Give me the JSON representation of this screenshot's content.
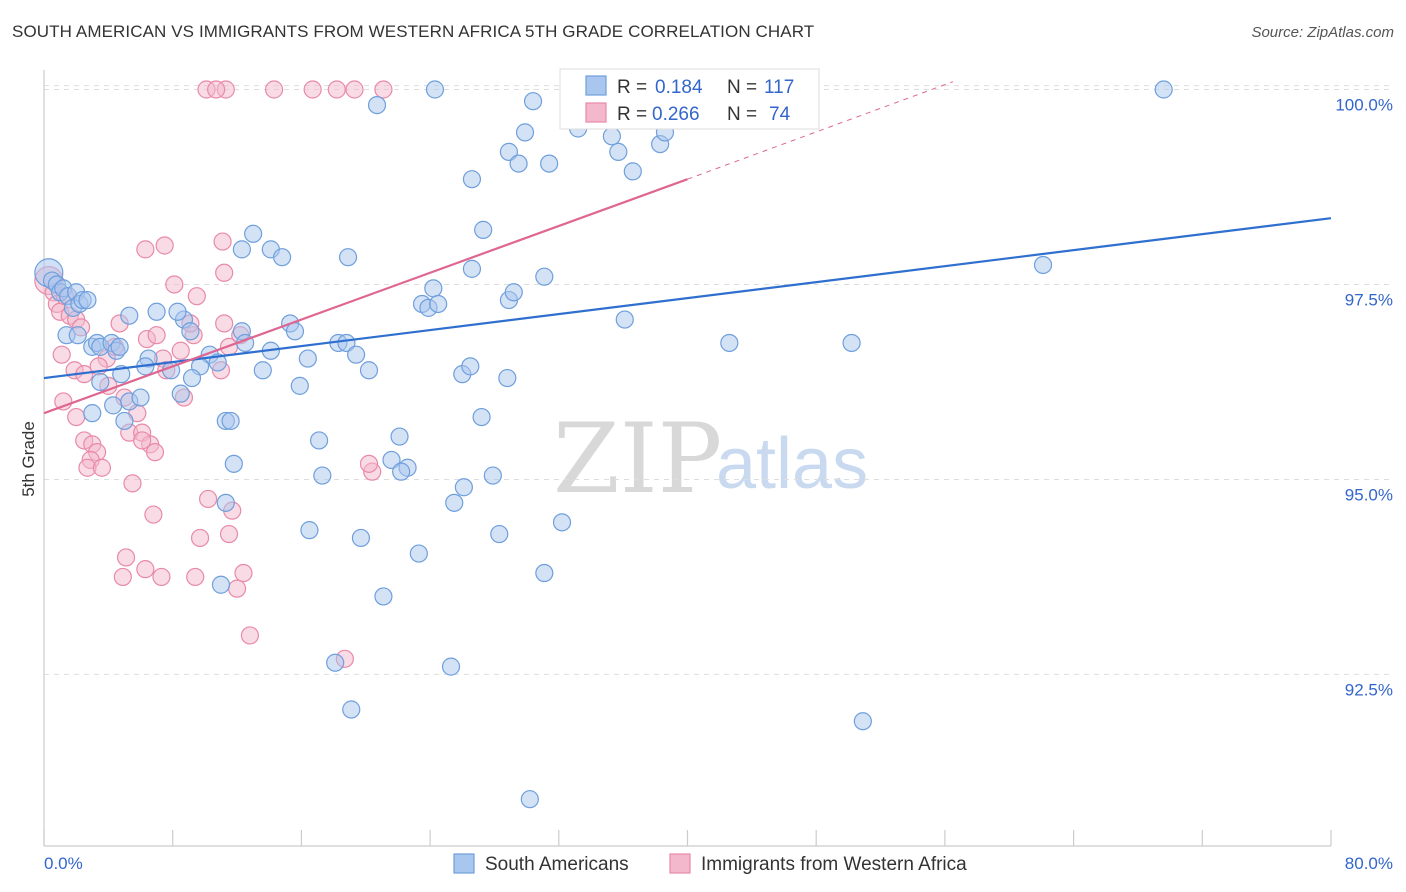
{
  "title": "SOUTH AMERICAN VS IMMIGRANTS FROM WESTERN AFRICA 5TH GRADE CORRELATION CHART",
  "source": "Source: ZipAtlas.com",
  "watermark": {
    "part1": "ZIP",
    "part2": "atlas"
  },
  "legend": {
    "row1": {
      "r_label": "R =",
      "r_value": "0.184",
      "n_label": "N =",
      "n_value": "117"
    },
    "row2": {
      "r_label": "R =",
      "r_value": "0.266",
      "n_label": "N =",
      "n_value": "74"
    }
  },
  "bottom_legend": {
    "series1": "South Americans",
    "series2": "Immigrants from Western Africa"
  },
  "colors": {
    "blue_fill": "#a9c6ee",
    "blue_stroke": "#6f9fdc",
    "blue_line": "#2e6fcf",
    "pink_fill": "#f4b8cc",
    "pink_stroke": "#e88aa8",
    "pink_line": "#e06692",
    "grid": "#dddddd"
  },
  "chart_data": {
    "type": "scatter",
    "title": "SOUTH AMERICAN VS IMMIGRANTS FROM WESTERN AFRICA 5TH GRADE CORRELATION CHART",
    "xlabel": "",
    "ylabel": "5th Grade",
    "xlim": [
      0,
      80
    ],
    "ylim": [
      90.3,
      100.25
    ],
    "x_tick_labels": [
      "0.0%",
      "80.0%"
    ],
    "y_ticks": [
      92.5,
      95.0,
      97.5,
      100.0
    ],
    "y_tick_labels": [
      "92.5%",
      "95.0%",
      "97.5%",
      "100.0%"
    ],
    "series": [
      {
        "name": "South Americans",
        "R": 0.184,
        "N": 117,
        "trend": {
          "x": [
            0,
            80
          ],
          "y": [
            96.3,
            98.35
          ]
        },
        "points": [
          [
            0.3,
            97.65
          ],
          [
            0.5,
            97.55
          ],
          [
            0.8,
            97.5
          ],
          [
            1.0,
            97.4
          ],
          [
            1.2,
            97.45
          ],
          [
            1.5,
            97.35
          ],
          [
            1.8,
            97.2
          ],
          [
            2.0,
            97.4
          ],
          [
            2.2,
            97.25
          ],
          [
            2.4,
            97.3
          ],
          [
            1.4,
            96.85
          ],
          [
            2.1,
            96.85
          ],
          [
            3.0,
            96.7
          ],
          [
            3.3,
            96.75
          ],
          [
            3.5,
            96.7
          ],
          [
            4.2,
            96.75
          ],
          [
            4.5,
            96.65
          ],
          [
            6.5,
            96.55
          ],
          [
            4.8,
            96.35
          ],
          [
            3.0,
            95.85
          ],
          [
            4.3,
            95.95
          ],
          [
            5.0,
            95.75
          ],
          [
            5.3,
            96.0
          ],
          [
            6.3,
            96.45
          ],
          [
            5.3,
            97.1
          ],
          [
            8.7,
            97.05
          ],
          [
            8.3,
            97.15
          ],
          [
            9.1,
            96.9
          ],
          [
            10.3,
            96.6
          ],
          [
            10.8,
            96.5
          ],
          [
            9.7,
            96.45
          ],
          [
            11.3,
            95.75
          ],
          [
            11.6,
            95.75
          ],
          [
            11.8,
            95.2
          ],
          [
            12.3,
            96.9
          ],
          [
            12.5,
            96.75
          ],
          [
            13.0,
            98.15
          ],
          [
            12.3,
            97.95
          ],
          [
            14.1,
            97.95
          ],
          [
            14.8,
            97.85
          ],
          [
            15.3,
            97.0
          ],
          [
            15.6,
            96.9
          ],
          [
            14.1,
            96.65
          ],
          [
            13.6,
            96.4
          ],
          [
            16.4,
            96.55
          ],
          [
            15.9,
            96.2
          ],
          [
            17.1,
            95.5
          ],
          [
            18.3,
            96.75
          ],
          [
            18.8,
            96.75
          ],
          [
            19.4,
            96.6
          ],
          [
            20.2,
            96.4
          ],
          [
            17.3,
            95.05
          ],
          [
            18.9,
            97.85
          ],
          [
            21.6,
            95.25
          ],
          [
            22.1,
            95.55
          ],
          [
            22.6,
            95.15
          ],
          [
            22.2,
            95.1
          ],
          [
            23.5,
            97.25
          ],
          [
            23.9,
            97.2
          ],
          [
            24.2,
            97.45
          ],
          [
            24.5,
            97.25
          ],
          [
            25.5,
            94.7
          ],
          [
            26.1,
            94.9
          ],
          [
            26.6,
            97.7
          ],
          [
            26.0,
            96.35
          ],
          [
            26.5,
            96.45
          ],
          [
            27.2,
            95.8
          ],
          [
            27.9,
            95.05
          ],
          [
            28.3,
            94.3
          ],
          [
            28.8,
            96.3
          ],
          [
            28.9,
            97.3
          ],
          [
            29.2,
            97.4
          ],
          [
            26.6,
            98.85
          ],
          [
            27.3,
            98.2
          ],
          [
            28.9,
            99.2
          ],
          [
            29.9,
            99.45
          ],
          [
            30.4,
            99.85
          ],
          [
            31.4,
            99.05
          ],
          [
            33.2,
            99.5
          ],
          [
            31.1,
            97.6
          ],
          [
            32.2,
            94.45
          ],
          [
            35.7,
            99.2
          ],
          [
            36.6,
            98.95
          ],
          [
            38.3,
            99.3
          ],
          [
            35.3,
            99.4
          ],
          [
            34.1,
            100.0
          ],
          [
            37.4,
            100.0
          ],
          [
            39.6,
            100.0
          ],
          [
            38.6,
            99.45
          ],
          [
            29.5,
            99.05
          ],
          [
            24.3,
            100.0
          ],
          [
            20.7,
            99.8
          ],
          [
            36.1,
            97.05
          ],
          [
            42.6,
            96.75
          ],
          [
            50.2,
            96.75
          ],
          [
            62.1,
            97.75
          ],
          [
            69.6,
            100.0
          ],
          [
            31.1,
            93.8
          ],
          [
            23.3,
            94.05
          ],
          [
            19.7,
            94.25
          ],
          [
            16.5,
            94.35
          ],
          [
            11.3,
            94.7
          ],
          [
            11.0,
            93.65
          ],
          [
            21.1,
            93.5
          ],
          [
            18.1,
            92.65
          ],
          [
            19.1,
            92.05
          ],
          [
            25.3,
            92.6
          ],
          [
            50.9,
            91.9
          ],
          [
            30.2,
            90.9
          ],
          [
            3.5,
            96.25
          ],
          [
            6.0,
            96.05
          ],
          [
            7.9,
            96.4
          ],
          [
            8.5,
            96.1
          ],
          [
            9.2,
            96.3
          ],
          [
            7.0,
            97.15
          ],
          [
            2.7,
            97.3
          ],
          [
            4.7,
            96.7
          ]
        ]
      },
      {
        "name": "Immigrants from Western Africa",
        "R": 0.266,
        "N": 74,
        "trend": {
          "x": [
            0,
            40
          ],
          "y": [
            95.85,
            98.85
          ]
        },
        "trend_dashed": {
          "x": [
            40,
            56.5
          ],
          "y": [
            98.85,
            100.1
          ]
        },
        "points": [
          [
            0.3,
            97.55
          ],
          [
            0.6,
            97.4
          ],
          [
            0.8,
            97.25
          ],
          [
            1.0,
            97.15
          ],
          [
            1.3,
            97.35
          ],
          [
            1.6,
            97.1
          ],
          [
            2.0,
            97.05
          ],
          [
            2.3,
            96.95
          ],
          [
            1.1,
            96.6
          ],
          [
            1.9,
            96.4
          ],
          [
            2.5,
            96.35
          ],
          [
            1.2,
            96.0
          ],
          [
            2.0,
            95.8
          ],
          [
            2.5,
            95.5
          ],
          [
            3.0,
            95.45
          ],
          [
            3.3,
            95.35
          ],
          [
            2.9,
            95.25
          ],
          [
            2.7,
            95.15
          ],
          [
            3.6,
            95.15
          ],
          [
            3.9,
            96.55
          ],
          [
            4.0,
            96.2
          ],
          [
            4.4,
            96.7
          ],
          [
            5.0,
            96.05
          ],
          [
            5.3,
            95.6
          ],
          [
            5.8,
            95.85
          ],
          [
            6.1,
            95.6
          ],
          [
            6.4,
            96.8
          ],
          [
            7.0,
            96.85
          ],
          [
            7.4,
            96.55
          ],
          [
            7.6,
            96.4
          ],
          [
            6.6,
            95.45
          ],
          [
            6.9,
            95.35
          ],
          [
            6.1,
            95.5
          ],
          [
            5.5,
            94.95
          ],
          [
            6.8,
            94.55
          ],
          [
            6.3,
            93.85
          ],
          [
            7.3,
            93.75
          ],
          [
            5.1,
            94.0
          ],
          [
            4.9,
            93.75
          ],
          [
            9.3,
            96.85
          ],
          [
            9.1,
            97.0
          ],
          [
            9.5,
            97.35
          ],
          [
            11.0,
            96.4
          ],
          [
            12.2,
            96.85
          ],
          [
            11.2,
            97.0
          ],
          [
            11.5,
            96.7
          ],
          [
            10.2,
            94.75
          ],
          [
            11.7,
            94.6
          ],
          [
            11.5,
            94.3
          ],
          [
            12.0,
            93.6
          ],
          [
            12.4,
            93.8
          ],
          [
            12.8,
            93.0
          ],
          [
            9.7,
            94.25
          ],
          [
            9.4,
            93.75
          ],
          [
            7.5,
            98.0
          ],
          [
            6.3,
            97.95
          ],
          [
            8.1,
            97.5
          ],
          [
            11.1,
            98.05
          ],
          [
            11.2,
            97.65
          ],
          [
            8.5,
            96.65
          ],
          [
            8.7,
            96.05
          ],
          [
            20.4,
            95.1
          ],
          [
            20.2,
            95.2
          ],
          [
            18.7,
            92.7
          ],
          [
            10.1,
            100.0
          ],
          [
            11.3,
            100.0
          ],
          [
            14.3,
            100.0
          ],
          [
            16.7,
            100.0
          ],
          [
            18.2,
            100.0
          ],
          [
            19.3,
            100.0
          ],
          [
            10.7,
            100.0
          ],
          [
            21.1,
            100.0
          ],
          [
            4.7,
            97.0
          ],
          [
            3.4,
            96.45
          ]
        ]
      }
    ]
  }
}
